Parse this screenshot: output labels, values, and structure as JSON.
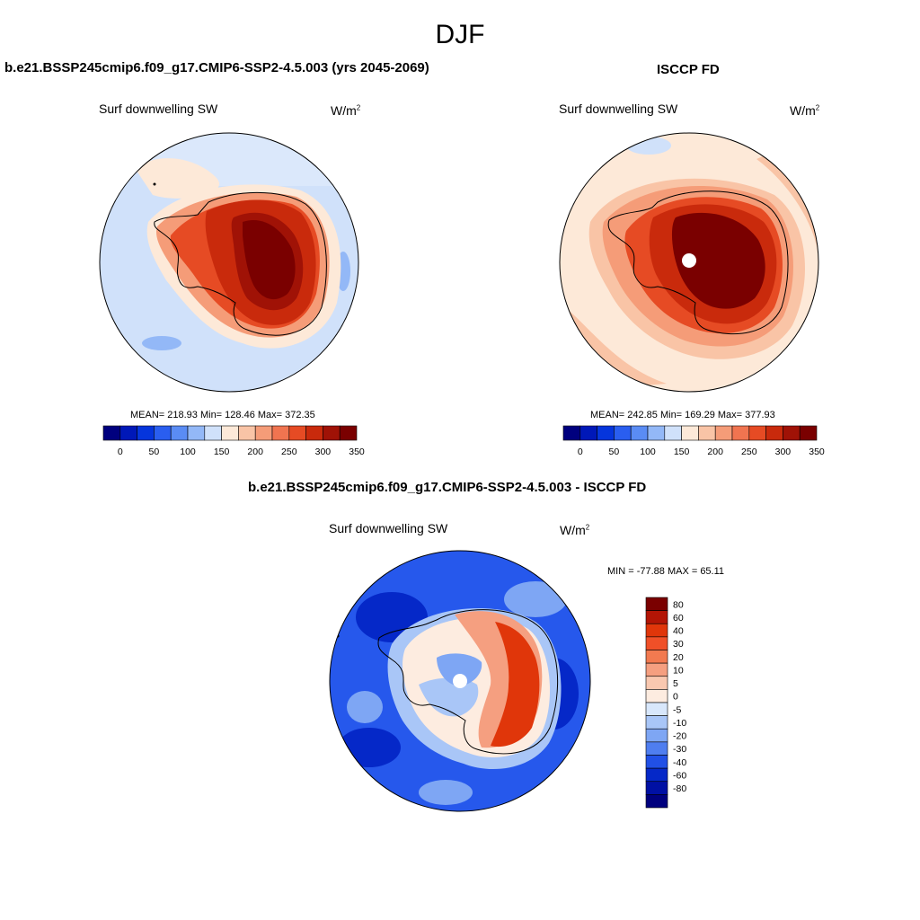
{
  "season_title": "DJF",
  "panels": [
    {
      "title": "b.e21.BSSP245cmip6.f09_g17.CMIP6-SSP2-4.5.003 (yrs 2045-2069)",
      "variable": "Surf downwelling SW",
      "units_base": "W/m",
      "units_exp": "2",
      "stats": "MEAN= 218.93  Min= 128.46  Max= 372.35"
    },
    {
      "title": "ISCCP FD",
      "variable": "Surf downwelling SW",
      "units_base": "W/m",
      "units_exp": "2",
      "stats": "MEAN= 242.85  Min= 169.29  Max= 377.93"
    },
    {
      "title": "b.e21.BSSP245cmip6.f09_g17.CMIP6-SSP2-4.5.003 - ISCCP FD",
      "variable": "Surf downwelling SW",
      "units_base": "W/m",
      "units_exp": "2",
      "stats": "MIN = -77.88 MAX =  65.11"
    }
  ],
  "colorbar_abs": {
    "colors": [
      "#00007e",
      "#0018b8",
      "#0535dc",
      "#2a5ef0",
      "#5a8cf4",
      "#93b8f7",
      "#d0e1fa",
      "#fde9d8",
      "#f9c4a6",
      "#f59c78",
      "#f07450",
      "#e64b24",
      "#c92a0c",
      "#a01206",
      "#7a0000"
    ],
    "ticks": [
      "0",
      "50",
      "100",
      "150",
      "200",
      "250",
      "300",
      "350"
    ]
  },
  "colorbar_diff": {
    "colors": [
      "#7a0000",
      "#b31505",
      "#e0360a",
      "#f05028",
      "#f27a50",
      "#f59f80",
      "#f9c8b0",
      "#fdece0",
      "#d8e7fb",
      "#a9c6f7",
      "#7ea6f4",
      "#4f7ef0",
      "#2150e6",
      "#0528c8",
      "#0010a4",
      "#00007e"
    ],
    "ticks": [
      "80",
      "60",
      "40",
      "30",
      "20",
      "10",
      "5",
      "0",
      "-5",
      "-10",
      "-20",
      "-30",
      "-40",
      "-60",
      "-80"
    ]
  },
  "map_colors": {
    "ocean_ref": "#cfe0fa",
    "land_line": "#000000"
  }
}
